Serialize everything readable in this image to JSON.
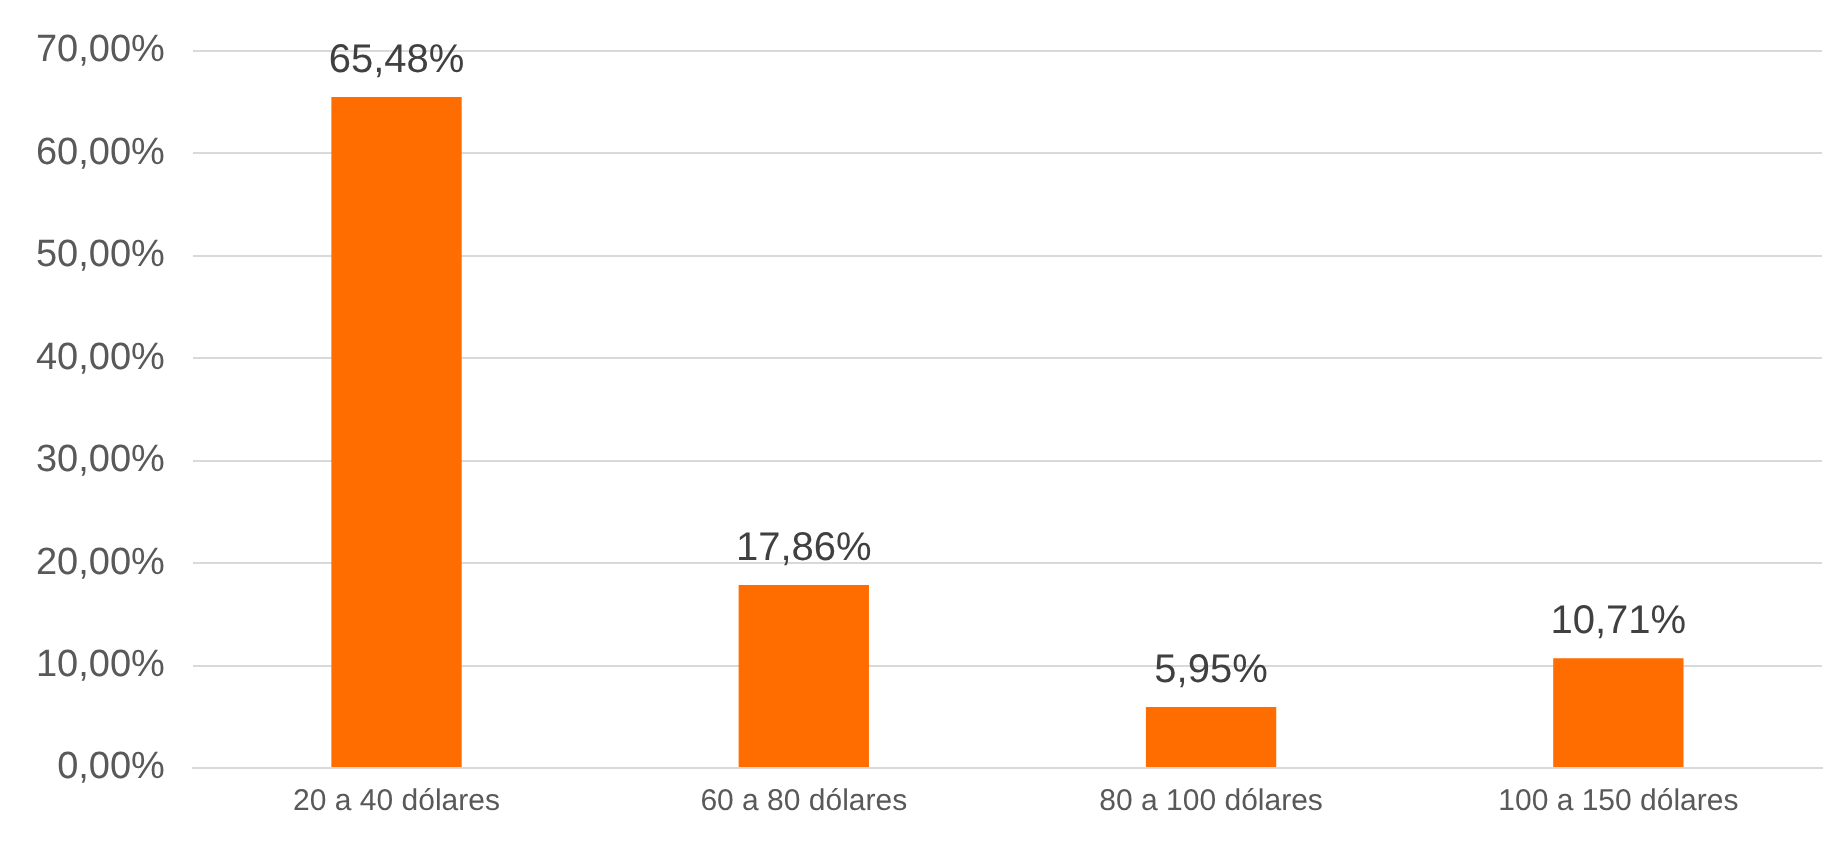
{
  "chart_data": {
    "type": "bar",
    "categories": [
      "20 a 40 dólares",
      "60 a 80 dólares",
      "80 a 100 dólares",
      "100 a 150 dólares"
    ],
    "values": [
      65.48,
      17.86,
      5.95,
      10.71
    ],
    "value_labels": [
      "65,48%",
      "17,86%",
      "5,95%",
      "10,71%"
    ],
    "color": "#ff6d00",
    "ylim": [
      0,
      70
    ],
    "yticks": [
      {
        "value": 0,
        "label": "0,00%"
      },
      {
        "value": 10,
        "label": "10,00%"
      },
      {
        "value": 20,
        "label": "20,00%"
      },
      {
        "value": 30,
        "label": "30,00%"
      },
      {
        "value": 40,
        "label": "40,00%"
      },
      {
        "value": 50,
        "label": "50,00%"
      },
      {
        "value": 60,
        "label": "60,00%"
      },
      {
        "value": 70,
        "label": "70,00%"
      }
    ],
    "grid": "y",
    "legend": false
  }
}
